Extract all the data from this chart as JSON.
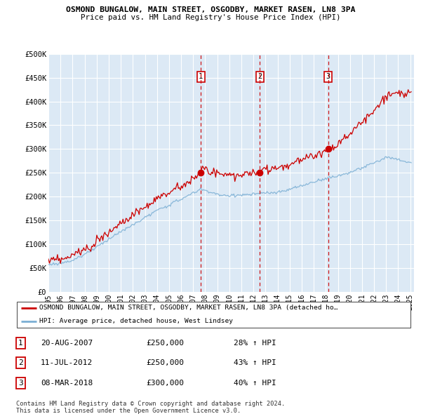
{
  "title1": "OSMOND BUNGALOW, MAIN STREET, OSGODBY, MARKET RASEN, LN8 3PA",
  "title2": "Price paid vs. HM Land Registry's House Price Index (HPI)",
  "ylim": [
    0,
    500000
  ],
  "yticks": [
    0,
    50000,
    100000,
    150000,
    200000,
    250000,
    300000,
    350000,
    400000,
    450000,
    500000
  ],
  "ytick_labels": [
    "£0",
    "£50K",
    "£100K",
    "£150K",
    "£200K",
    "£250K",
    "£300K",
    "£350K",
    "£400K",
    "£450K",
    "£500K"
  ],
  "sale_dates": [
    "20-AUG-2007",
    "11-JUL-2012",
    "08-MAR-2018"
  ],
  "sale_prices": [
    250000,
    250000,
    300000
  ],
  "sale_pct": [
    "28%",
    "43%",
    "40%"
  ],
  "sale_years": [
    2007.64,
    2012.53,
    2018.19
  ],
  "legend_property": "OSMOND BUNGALOW, MAIN STREET, OSGODBY, MARKET RASEN, LN8 3PA (detached ho…",
  "legend_hpi": "HPI: Average price, detached house, West Lindsey",
  "footer1": "Contains HM Land Registry data © Crown copyright and database right 2024.",
  "footer2": "This data is licensed under the Open Government Licence v3.0.",
  "property_line_color": "#cc0000",
  "hpi_line_color": "#7bafd4",
  "dashed_line_color": "#cc0000",
  "background_color": "#dce9f5",
  "grid_color": "#ffffff",
  "sale_box_color": "#cc0000",
  "xlim_start": 1995,
  "xlim_end": 2025.3
}
